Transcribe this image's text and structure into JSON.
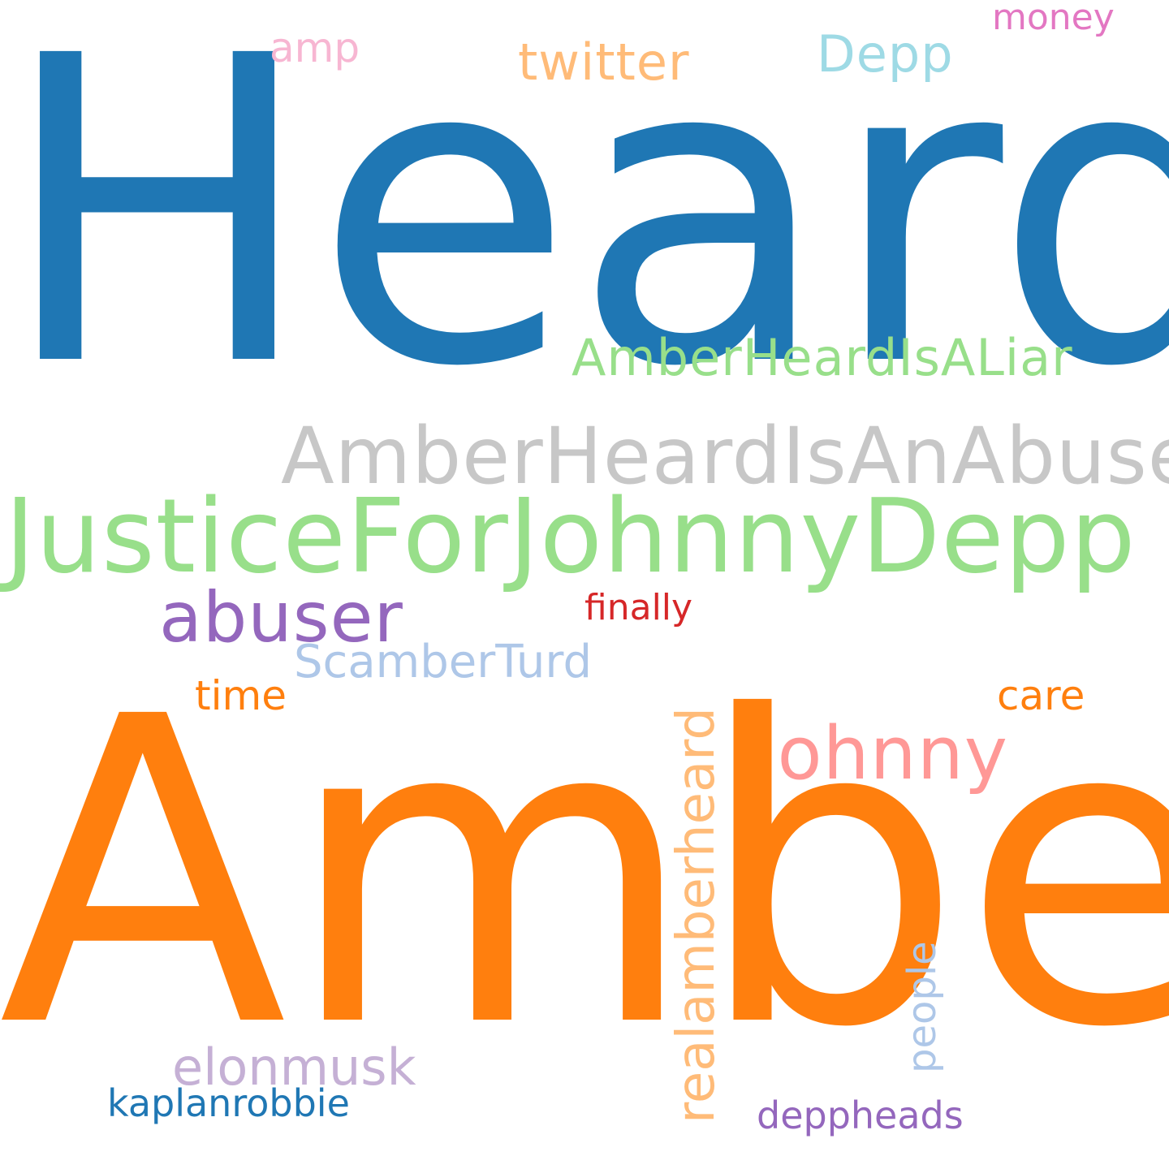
{
  "cloud": {
    "words": {
      "heard": {
        "text": "Heard",
        "color": "#1f77b4"
      },
      "amber": {
        "text": "Amber",
        "color": "#ff7f0e"
      },
      "justice": {
        "text": "JusticeForJohnnyDepp",
        "color": "#98df8a"
      },
      "abuser_hash": {
        "text": "AmberHeardIsAnAbuser",
        "color": "#c7c7c7"
      },
      "liar": {
        "text": "AmberHeardIsALiar",
        "color": "#98df8a"
      },
      "twitter": {
        "text": "twitter",
        "color": "#ffbb78"
      },
      "depp": {
        "text": "Depp",
        "color": "#9edae5"
      },
      "amp": {
        "text": "amp",
        "color": "#f7b6d2"
      },
      "money": {
        "text": "money",
        "color": "#e377c2"
      },
      "abuser": {
        "text": "abuser",
        "color": "#9467bd"
      },
      "finally": {
        "text": "finally",
        "color": "#d62728"
      },
      "scamber": {
        "text": "ScamberTurd",
        "color": "#aec7e8"
      },
      "time": {
        "text": "time",
        "color": "#ff7f0e"
      },
      "care": {
        "text": "care",
        "color": "#ff7f0e"
      },
      "johnny": {
        "text": "Johnny",
        "color": "#ff9896"
      },
      "realamber": {
        "text": "realamberheard",
        "color": "#ffbb78"
      },
      "people": {
        "text": "people",
        "color": "#aec7e8"
      },
      "elonmusk": {
        "text": "elonmusk",
        "color": "#c5b0d5"
      },
      "kaplan": {
        "text": "kaplanrobbie",
        "color": "#1f77b4"
      },
      "deppheads": {
        "text": "deppheads",
        "color": "#9467bd"
      }
    }
  }
}
